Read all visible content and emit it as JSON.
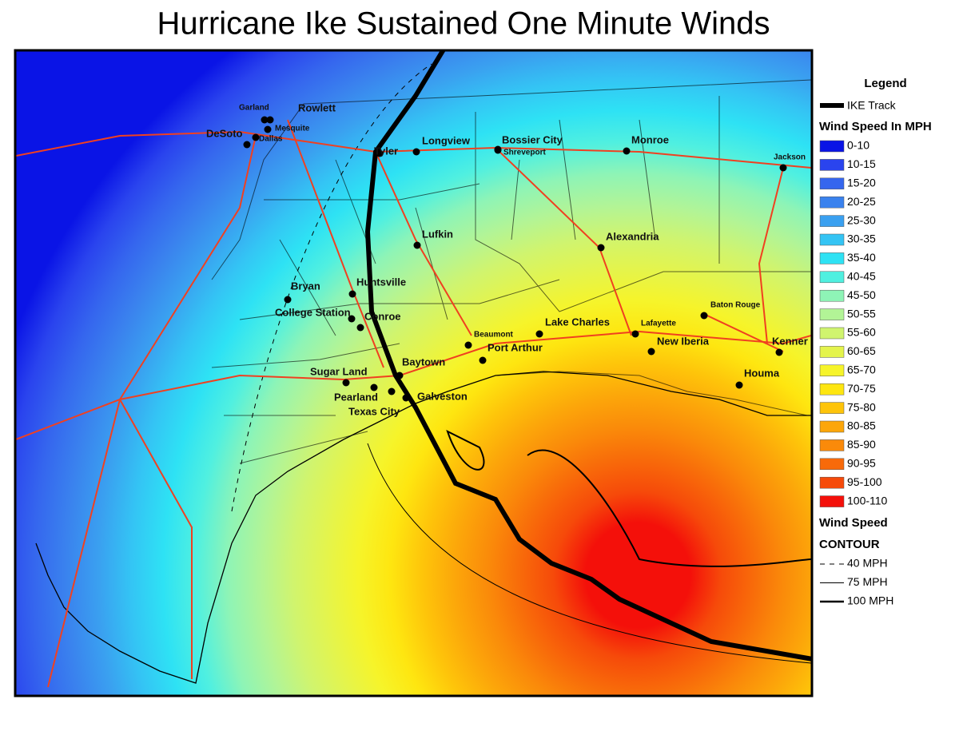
{
  "title": "Hurricane Ike Sustained One Minute Winds",
  "legend": {
    "title": "Legend",
    "track": "IKE Track",
    "wind_title": "Wind Speed In MPH",
    "bins": [
      {
        "label": "0-10",
        "color": "#0a14e6"
      },
      {
        "label": "10-15",
        "color": "#2a44ee"
      },
      {
        "label": "15-20",
        "color": "#3566ee"
      },
      {
        "label": "20-25",
        "color": "#3a82ee"
      },
      {
        "label": "25-30",
        "color": "#3aa0f0"
      },
      {
        "label": "30-35",
        "color": "#34c4f4"
      },
      {
        "label": "35-40",
        "color": "#2ee2f4"
      },
      {
        "label": "40-45",
        "color": "#50f0e0"
      },
      {
        "label": "45-50",
        "color": "#8ef4b6"
      },
      {
        "label": "50-55",
        "color": "#b2f496"
      },
      {
        "label": "55-60",
        "color": "#d0f46e"
      },
      {
        "label": "60-65",
        "color": "#e4f44c"
      },
      {
        "label": "65-70",
        "color": "#f6f42a"
      },
      {
        "label": "70-75",
        "color": "#fee610"
      },
      {
        "label": "75-80",
        "color": "#fec40a"
      },
      {
        "label": "80-85",
        "color": "#fca60a"
      },
      {
        "label": "85-90",
        "color": "#fa8a0a"
      },
      {
        "label": "90-95",
        "color": "#f86a0a"
      },
      {
        "label": "95-100",
        "color": "#f64a0a"
      },
      {
        "label": "100-110",
        "color": "#f4100a"
      }
    ],
    "contour_title": [
      "Wind Speed",
      "CONTOUR"
    ],
    "contours": [
      "40 MPH",
      "75 MPH",
      "100 MPH"
    ]
  },
  "cities": [
    "Garland",
    "Rowlett",
    "DeSoto",
    "Mesquite",
    "Dallas",
    "Tyler",
    "Longview",
    "Bossier City",
    "Shreveport",
    "Monroe",
    "Jackson",
    "Lufkin",
    "Alexandria",
    "Bryan",
    "Huntsville",
    "College Station",
    "Conroe",
    "Beaumont",
    "Lake Charles",
    "Lafayette",
    "Baton Rouge",
    "Port Arthur",
    "New Iberia",
    "Kenner",
    "Sugar Land",
    "Baytown",
    "Houma",
    "Pearland",
    "Galveston",
    "Texas City"
  ]
}
